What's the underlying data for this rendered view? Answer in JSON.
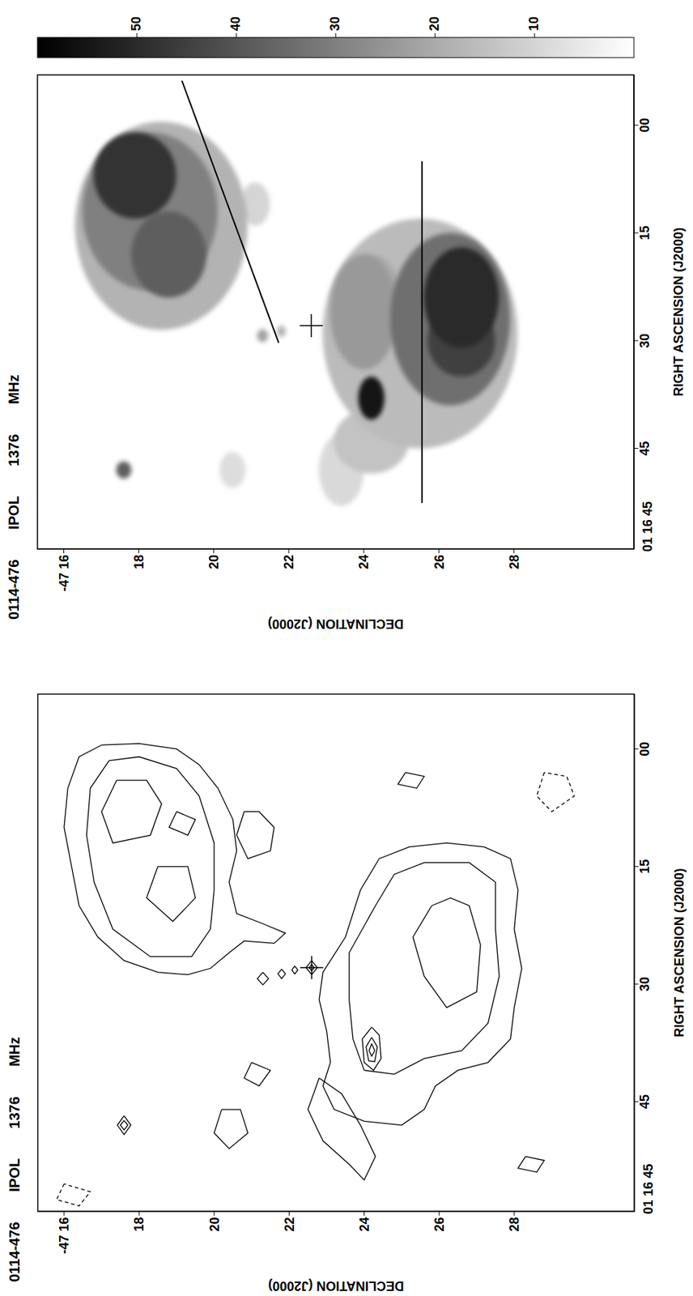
{
  "chart_data": [
    {
      "type": "image",
      "title": "0114-476 IPOL 1376 MHz",
      "x_label": "RIGHT ASCENSION (J2000)",
      "y_label": "DECLINATION (J2000)",
      "xlim": [
        59,
        -7
      ],
      "ylim": [
        31.2,
        15.3
      ],
      "xticks": [
        45,
        30,
        15,
        {
          "value": 0,
          "label": "00"
        }
      ],
      "yticks": [
        {
          "value": 16,
          "label": "-47 16"
        },
        18,
        20,
        22,
        24,
        26,
        28
      ],
      "annotations": [
        "01 16 45"
      ],
      "colorbar": {
        "range": [
          0,
          60
        ],
        "ticks": [
          10,
          20,
          30,
          40,
          50
        ]
      },
      "components": [
        {
          "ra": 48,
          "dec": 20.5,
          "ra_radius": 2.5,
          "dec_radius": 0.35,
          "value": 8
        },
        {
          "ra": 48,
          "dec": 23.4,
          "ra_radius": 5,
          "dec_radius": 0.6,
          "value": 9
        },
        {
          "ra": 11,
          "dec": 21.1,
          "ra_radius": 3,
          "dec_radius": 0.4,
          "value": 10
        },
        {
          "ra": 44,
          "dec": 24.2,
          "ra_radius": 4.5,
          "dec_radius": 1.0,
          "value": 14
        },
        {
          "ra": 29,
          "dec": 25.5,
          "ra_radius": 16,
          "dec_radius": 2.6,
          "value": 16
        },
        {
          "ra": 14,
          "dec": 18.6,
          "ra_radius": 14.5,
          "dec_radius": 2.3,
          "value": 18
        },
        {
          "ra": 28.7,
          "dec": 21.8,
          "ra_radius": 0.8,
          "dec_radius": 0.12,
          "value": 18
        },
        {
          "ra": 24,
          "dec": 24.2,
          "ra_radius": 6,
          "dec_radius": 0.8,
          "value": 20
        },
        {
          "ra": 29.3,
          "dec": 21.3,
          "ra_radius": 0.9,
          "dec_radius": 0.15,
          "value": 22
        },
        {
          "ra": 26,
          "dec": 24.0,
          "ra_radius": 8,
          "dec_radius": 0.9,
          "value": 24
        },
        {
          "ra": 12,
          "dec": 18.3,
          "ra_radius": 11,
          "dec_radius": 1.8,
          "value": 30
        },
        {
          "ra": 27,
          "dec": 26.3,
          "ra_radius": 12,
          "dec_radius": 1.6,
          "value": 34
        },
        {
          "ra": 18,
          "dec": 18.8,
          "ra_radius": 6,
          "dec_radius": 1.0,
          "value": 38
        },
        {
          "ra": 48,
          "dec": 17.6,
          "ra_radius": 1.2,
          "dec_radius": 0.2,
          "value": 38
        },
        {
          "ra": 30,
          "dec": 26.6,
          "ra_radius": 5,
          "dec_radius": 0.9,
          "value": 45
        },
        {
          "ra": 7,
          "dec": 17.9,
          "ra_radius": 6,
          "dec_radius": 1.1,
          "value": 48
        },
        {
          "ra": 24,
          "dec": 26.6,
          "ra_radius": 7,
          "dec_radius": 1.0,
          "value": 50
        },
        {
          "ra": 38,
          "dec": 24.2,
          "ra_radius": 3,
          "dec_radius": 0.35,
          "value": 55
        }
      ],
      "cuts": [
        {
          "points": [
            [
              -6.2,
              19.15
            ],
            [
              30.3,
              21.73
            ]
          ]
        },
        {
          "points": [
            [
              5.0,
              25.55
            ],
            [
              52.6,
              25.55
            ]
          ]
        }
      ],
      "core": {
        "ra": 27.9,
        "dec": 22.6
      }
    },
    {
      "type": "contour",
      "title": "0114-476 IPOL 1376 MHz",
      "x_label": "RIGHT ASCENSION (J2000)",
      "y_label": "DECLINATION (J2000)",
      "xlim": [
        59,
        -7
      ],
      "ylim": [
        31.2,
        15.3
      ],
      "xticks": [
        45,
        30,
        15,
        {
          "value": 0,
          "label": "00"
        }
      ],
      "yticks": [
        {
          "value": 16,
          "label": "-47 16"
        },
        18,
        20,
        22,
        24,
        26,
        28
      ],
      "annotations": [
        "01 16 45"
      ],
      "contours": [
        {
          "points": [
            [
              -0.5,
              17.0
            ],
            [
              1,
              16.4
            ],
            [
              5,
              16.1
            ],
            [
              10,
              16.0
            ],
            [
              15,
              16.2
            ],
            [
              20,
              16.4
            ],
            [
              24,
              16.9
            ],
            [
              27,
              17.6
            ],
            [
              28.5,
              18.5
            ],
            [
              28.8,
              19.3
            ],
            [
              28,
              19.9
            ],
            [
              26,
              20.4
            ],
            [
              24.5,
              20.8
            ],
            [
              24.8,
              21.6
            ],
            [
              23.5,
              21.9
            ],
            [
              22.3,
              21.3
            ],
            [
              21,
              20.6
            ],
            [
              17,
              20.4
            ],
            [
              13,
              20.6
            ],
            [
              9,
              20.5
            ],
            [
              5,
              20.1
            ],
            [
              2,
              19.6
            ],
            [
              0,
              19.0
            ],
            [
              -0.7,
              18.0
            ],
            [
              -0.5,
              17.0
            ]
          ]
        },
        {
          "points": [
            [
              1.5,
              17.2
            ],
            [
              5,
              16.7
            ],
            [
              11,
              16.6
            ],
            [
              17,
              16.8
            ],
            [
              23,
              17.3
            ],
            [
              26.5,
              18.3
            ],
            [
              26.5,
              19.4
            ],
            [
              23,
              19.9
            ],
            [
              18,
              20.0
            ],
            [
              12,
              20.0
            ],
            [
              6,
              19.6
            ],
            [
              2.5,
              19.0
            ],
            [
              1,
              18.0
            ],
            [
              1.5,
              17.2
            ]
          ]
        },
        {
          "points": [
            [
              4,
              17.4
            ],
            [
              8,
              17.0
            ],
            [
              12,
              17.3
            ],
            [
              11,
              18.3
            ],
            [
              7,
              18.6
            ],
            [
              4,
              18.2
            ],
            [
              4,
              17.4
            ]
          ]
        },
        {
          "points": [
            [
              15,
              18.5
            ],
            [
              19,
              18.2
            ],
            [
              22,
              18.9
            ],
            [
              19,
              19.5
            ],
            [
              15,
              19.3
            ],
            [
              15,
              18.5
            ]
          ]
        },
        {
          "points": [
            [
              8,
              19.0
            ],
            [
              10,
              18.8
            ],
            [
              11,
              19.3
            ],
            [
              9,
              19.5
            ],
            [
              8,
              19.0
            ]
          ]
        },
        {
          "points": [
            [
              28.5,
              22.9
            ],
            [
              24,
              23.5
            ],
            [
              18,
              23.9
            ],
            [
              14,
              24.4
            ],
            [
              12.5,
              25.2
            ],
            [
              12,
              26.2
            ],
            [
              12.5,
              27.2
            ],
            [
              14,
              27.9
            ],
            [
              18,
              28.1
            ],
            [
              23,
              28.0
            ],
            [
              28,
              28.2
            ],
            [
              33,
              28.0
            ],
            [
              37,
              27.9
            ],
            [
              40,
              27.3
            ],
            [
              41,
              26.5
            ],
            [
              43,
              25.9
            ],
            [
              46,
              25.6
            ],
            [
              48,
              25.0
            ],
            [
              47.5,
              24.0
            ],
            [
              46,
              23.2
            ],
            [
              43,
              22.9
            ],
            [
              40,
              23.1
            ],
            [
              36,
              23.0
            ],
            [
              32,
              22.8
            ],
            [
              28.5,
              22.9
            ]
          ]
        },
        {
          "points": [
            [
              26,
              23.6
            ],
            [
              20,
              24.3
            ],
            [
              16,
              24.8
            ],
            [
              14.5,
              25.6
            ],
            [
              14.5,
              26.8
            ],
            [
              17,
              27.5
            ],
            [
              23,
              27.5
            ],
            [
              29,
              27.6
            ],
            [
              35,
              27.3
            ],
            [
              38.5,
              26.6
            ],
            [
              39.5,
              25.6
            ],
            [
              41.5,
              24.8
            ],
            [
              41,
              24.0
            ],
            [
              37,
              23.7
            ],
            [
              32,
              23.6
            ],
            [
              26,
              23.6
            ]
          ]
        },
        {
          "points": [
            [
              20,
              25.8
            ],
            [
              24,
              25.3
            ],
            [
              29,
              25.6
            ],
            [
              33,
              26.2
            ],
            [
              31,
              27.0
            ],
            [
              25,
              27.1
            ],
            [
              20,
              26.8
            ],
            [
              19,
              26.3
            ],
            [
              20,
              25.8
            ]
          ]
        },
        {
          "points": [
            [
              35.5,
              24.2
            ],
            [
              37,
              23.95
            ],
            [
              40,
              24.0
            ],
            [
              41,
              24.25
            ],
            [
              39.5,
              24.45
            ],
            [
              36.5,
              24.4
            ],
            [
              35.5,
              24.2
            ]
          ]
        },
        {
          "points": [
            [
              36.8,
              24.2
            ],
            [
              38,
              24.05
            ],
            [
              39.8,
              24.12
            ],
            [
              39.9,
              24.28
            ],
            [
              38,
              24.35
            ],
            [
              36.8,
              24.2
            ]
          ]
        },
        {
          "points": [
            [
              37.6,
              24.2
            ],
            [
              38.5,
              24.13
            ],
            [
              39.2,
              24.2
            ],
            [
              38.5,
              24.28
            ],
            [
              37.6,
              24.2
            ]
          ]
        },
        {
          "points": [
            [
              27.0,
              22.6
            ],
            [
              27.9,
              22.45
            ],
            [
              28.8,
              22.6
            ],
            [
              27.9,
              22.75
            ],
            [
              27.0,
              22.6
            ]
          ]
        },
        {
          "points": [
            [
              27.5,
              22.6
            ],
            [
              27.9,
              22.53
            ],
            [
              28.3,
              22.6
            ],
            [
              27.9,
              22.67
            ],
            [
              27.5,
              22.6
            ]
          ]
        },
        {
          "points": [
            [
              28.5,
              21.3
            ],
            [
              29.3,
              21.15
            ],
            [
              30.1,
              21.3
            ],
            [
              29.3,
              21.45
            ],
            [
              28.5,
              21.3
            ]
          ]
        },
        {
          "points": [
            [
              28.1,
              21.8
            ],
            [
              28.7,
              21.7
            ],
            [
              29.3,
              21.8
            ],
            [
              28.7,
              21.9
            ],
            [
              28.1,
              21.8
            ]
          ]
        },
        {
          "points": [
            [
              27.7,
              22.15
            ],
            [
              28.2,
              22.07
            ],
            [
              28.7,
              22.15
            ],
            [
              28.2,
              22.23
            ],
            [
              27.7,
              22.15
            ]
          ]
        },
        {
          "points": [
            [
              46.8,
              17.6
            ],
            [
              48,
              17.42
            ],
            [
              49.2,
              17.6
            ],
            [
              48,
              17.78
            ],
            [
              46.8,
              17.6
            ]
          ]
        },
        {
          "points": [
            [
              47.4,
              17.6
            ],
            [
              48,
              17.5
            ],
            [
              48.6,
              17.6
            ],
            [
              48,
              17.7
            ],
            [
              47.4,
              17.6
            ]
          ]
        },
        {
          "points": [
            [
              8,
              20.8
            ],
            [
              11,
              20.6
            ],
            [
              14,
              20.9
            ],
            [
              13,
              21.5
            ],
            [
              10,
              21.6
            ],
            [
              8,
              21.2
            ],
            [
              8,
              20.8
            ]
          ]
        },
        {
          "points": [
            [
              42,
              22.8
            ],
            [
              46,
              22.5
            ],
            [
              50,
              22.9
            ],
            [
              53,
              23.6
            ],
            [
              55,
              24.0
            ],
            [
              52,
              24.3
            ],
            [
              48,
              23.9
            ],
            [
              44,
              23.4
            ],
            [
              42,
              22.8
            ]
          ]
        },
        {
          "points": [
            [
              46,
              20.2
            ],
            [
              49,
              20.0
            ],
            [
              51,
              20.4
            ],
            [
              49,
              20.9
            ],
            [
              46,
              20.7
            ],
            [
              46,
              20.2
            ]
          ]
        },
        {
          "points": [
            [
              40,
              21.0
            ],
            [
              42,
              20.8
            ],
            [
              43,
              21.2
            ],
            [
              41,
              21.5
            ],
            [
              40,
              21.0
            ]
          ]
        },
        {
          "points": [
            [
              3,
              25.1
            ],
            [
              4.5,
              24.9
            ],
            [
              5,
              25.4
            ],
            [
              3.5,
              25.6
            ],
            [
              3,
              25.1
            ]
          ]
        },
        {
          "points": [
            [
              52,
              28.3
            ],
            [
              53.5,
              28.1
            ],
            [
              54,
              28.6
            ],
            [
              52.5,
              28.8
            ],
            [
              52,
              28.3
            ]
          ]
        },
        {
          "points": [
            [
              55.5,
              16.0
            ],
            [
              57.5,
              15.8
            ],
            [
              58.3,
              16.4
            ],
            [
              56.5,
              16.7
            ],
            [
              55.5,
              16.0
            ]
          ],
          "line_style": "dashed"
        },
        {
          "points": [
            [
              3,
              28.8
            ],
            [
              6,
              28.6
            ],
            [
              8,
              29.0
            ],
            [
              6,
              29.6
            ],
            [
              3.5,
              29.4
            ],
            [
              3,
              28.8
            ]
          ],
          "line_style": "dashed"
        }
      ],
      "core": {
        "ra": 27.9,
        "dec": 22.6
      }
    }
  ]
}
